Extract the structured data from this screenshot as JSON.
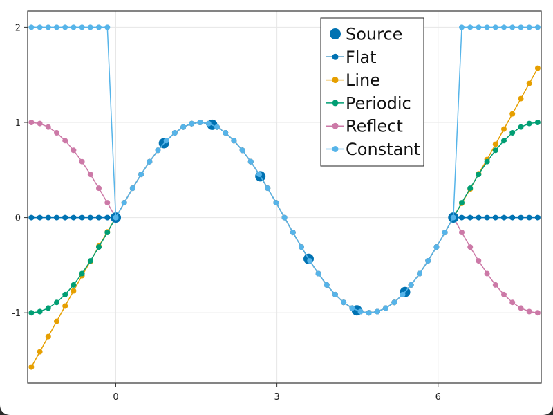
{
  "chart_data": {
    "type": "line",
    "title": "",
    "xlabel": "",
    "ylabel": "",
    "xlim": [
      -1.64,
      7.92
    ],
    "ylim": [
      -1.74,
      2.17
    ],
    "grid": true,
    "x_ticks": [
      {
        "value": 0,
        "label": "0"
      },
      {
        "value": 3,
        "label": "3"
      },
      {
        "value": 6,
        "label": "6"
      }
    ],
    "y_ticks": [
      {
        "value": -1,
        "label": "-1"
      },
      {
        "value": 0,
        "label": "0"
      },
      {
        "value": 1,
        "label": "1"
      },
      {
        "value": 2,
        "label": "2"
      }
    ],
    "legend_position": "top-right",
    "colors": {
      "source": "#0072B2",
      "flat": "#0072B2",
      "line": "#E69F00",
      "periodic": "#009E73",
      "reflect": "#CC79A7",
      "constant": "#56B4E9",
      "grid": "#e6e6e6",
      "axis": "#333333"
    },
    "source": {
      "name": "Source",
      "x": [
        0.0,
        0.8976,
        1.7952,
        2.6928,
        3.5904,
        4.488,
        5.3856,
        6.2832
      ],
      "y": [
        0.0,
        0.7818,
        0.9749,
        0.4339,
        -0.4339,
        -0.9749,
        -0.7818,
        0.0
      ]
    },
    "series": [
      {
        "name": "Flat",
        "color_key": "flat",
        "x": [
          -1.5708,
          -1.4137,
          -1.2566,
          -1.0996,
          -0.9425,
          -0.7854,
          -0.6283,
          -0.4712,
          -0.3142,
          -0.1571,
          0.0,
          6.2832,
          6.4403,
          6.5973,
          6.7544,
          6.9115,
          7.0686,
          7.2257,
          7.3827,
          7.5398,
          7.6969,
          7.854
        ],
        "y": [
          0,
          0,
          0,
          0,
          0,
          0,
          0,
          0,
          0,
          0,
          0,
          0,
          0,
          0,
          0,
          0,
          0,
          0,
          0,
          0,
          0,
          0
        ]
      },
      {
        "name": "Line",
        "color_key": "line",
        "x": [
          -1.5708,
          -1.4137,
          -1.2566,
          -1.0996,
          -0.9425,
          -0.7854,
          -0.6283,
          -0.4712,
          -0.3142,
          -0.1571,
          0.0,
          6.2832,
          6.4403,
          6.5973,
          6.7544,
          6.9115,
          7.0686,
          7.2257,
          7.3827,
          7.5398,
          7.6969,
          7.854
        ],
        "y": [
          -1.57,
          -1.41,
          -1.25,
          -1.09,
          -0.93,
          -0.77,
          -0.61,
          -0.46,
          -0.3,
          -0.15,
          0.0,
          0.0,
          0.15,
          0.3,
          0.46,
          0.61,
          0.77,
          0.93,
          1.09,
          1.25,
          1.41,
          1.57
        ]
      },
      {
        "name": "Periodic",
        "color_key": "periodic",
        "x": [
          -1.5708,
          -1.4137,
          -1.2566,
          -1.0996,
          -0.9425,
          -0.7854,
          -0.6283,
          -0.4712,
          -0.3142,
          -0.1571,
          0.0,
          6.2832,
          6.4403,
          6.5973,
          6.7544,
          6.9115,
          7.0686,
          7.2257,
          7.3827,
          7.5398,
          7.6969,
          7.854
        ],
        "y": [
          -1.0,
          -0.988,
          -0.951,
          -0.891,
          -0.809,
          -0.707,
          -0.588,
          -0.454,
          -0.309,
          -0.156,
          0.0,
          0.0,
          0.156,
          0.309,
          0.454,
          0.588,
          0.707,
          0.809,
          0.891,
          0.951,
          0.988,
          1.0
        ]
      },
      {
        "name": "Reflect",
        "color_key": "reflect",
        "x": [
          -1.5708,
          -1.4137,
          -1.2566,
          -1.0996,
          -0.9425,
          -0.7854,
          -0.6283,
          -0.4712,
          -0.3142,
          -0.1571,
          0.0,
          6.2832,
          6.4403,
          6.5973,
          6.7544,
          6.9115,
          7.0686,
          7.2257,
          7.3827,
          7.5398,
          7.6969,
          7.854
        ],
        "y": [
          1.0,
          0.988,
          0.951,
          0.891,
          0.809,
          0.707,
          0.588,
          0.454,
          0.309,
          0.156,
          0.0,
          0.0,
          -0.156,
          -0.309,
          -0.454,
          -0.588,
          -0.707,
          -0.809,
          -0.891,
          -0.951,
          -0.988,
          -1.0
        ]
      },
      {
        "name": "Constant",
        "color_key": "constant",
        "x": [
          -1.5708,
          -1.4137,
          -1.2566,
          -1.0996,
          -0.9425,
          -0.7854,
          -0.6283,
          -0.4712,
          -0.3142,
          -0.1571,
          0.0,
          6.2832,
          6.4403,
          6.5973,
          6.7544,
          6.9115,
          7.0686,
          7.2257,
          7.3827,
          7.5398,
          7.6969,
          7.854
        ],
        "y": [
          2,
          2,
          2,
          2,
          2,
          2,
          2,
          2,
          2,
          2,
          0.0,
          0.0,
          2,
          2,
          2,
          2,
          2,
          2,
          2,
          2,
          2,
          2
        ]
      }
    ],
    "interp_curve": {
      "x_start": 0.0,
      "x_end": 6.2832,
      "count": 41,
      "function": "sin"
    }
  }
}
